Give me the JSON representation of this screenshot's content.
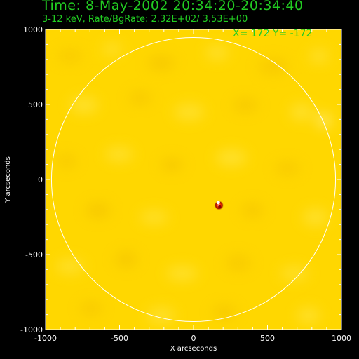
{
  "header": {
    "time": "Time:  8-May-2002 20:34:20-20:34:40",
    "rate": "3-12 keV, Rate/BgRate:  2.32E+02/  3.53E+00"
  },
  "readout": "X=  172 Y= -172",
  "colors": {
    "background": "#000000",
    "image": "#ffd700",
    "text_header": "#22cc22",
    "axes": "#ffffff",
    "limb": "#ffffff"
  },
  "chart_data": {
    "type": "heatmap",
    "xlabel": "X arcseconds",
    "ylabel": "Y arcseconds",
    "xlim": [
      -1000,
      1000
    ],
    "ylim": [
      -1000,
      1000
    ],
    "x_ticks": [
      {
        "value": -1000,
        "label": "-1000"
      },
      {
        "value": -500,
        "label": "-500"
      },
      {
        "value": 0,
        "label": "0"
      },
      {
        "value": 500,
        "label": "500"
      },
      {
        "value": 1000,
        "label": "1000"
      }
    ],
    "y_ticks": [
      {
        "value": 1000,
        "label": "1000"
      },
      {
        "value": 500,
        "label": "500"
      },
      {
        "value": 0,
        "label": "0"
      },
      {
        "value": -500,
        "label": "-500"
      },
      {
        "value": -1000,
        "label": "-1000"
      }
    ],
    "limb_radius": 960,
    "source": {
      "x": 172,
      "y": -172
    }
  }
}
